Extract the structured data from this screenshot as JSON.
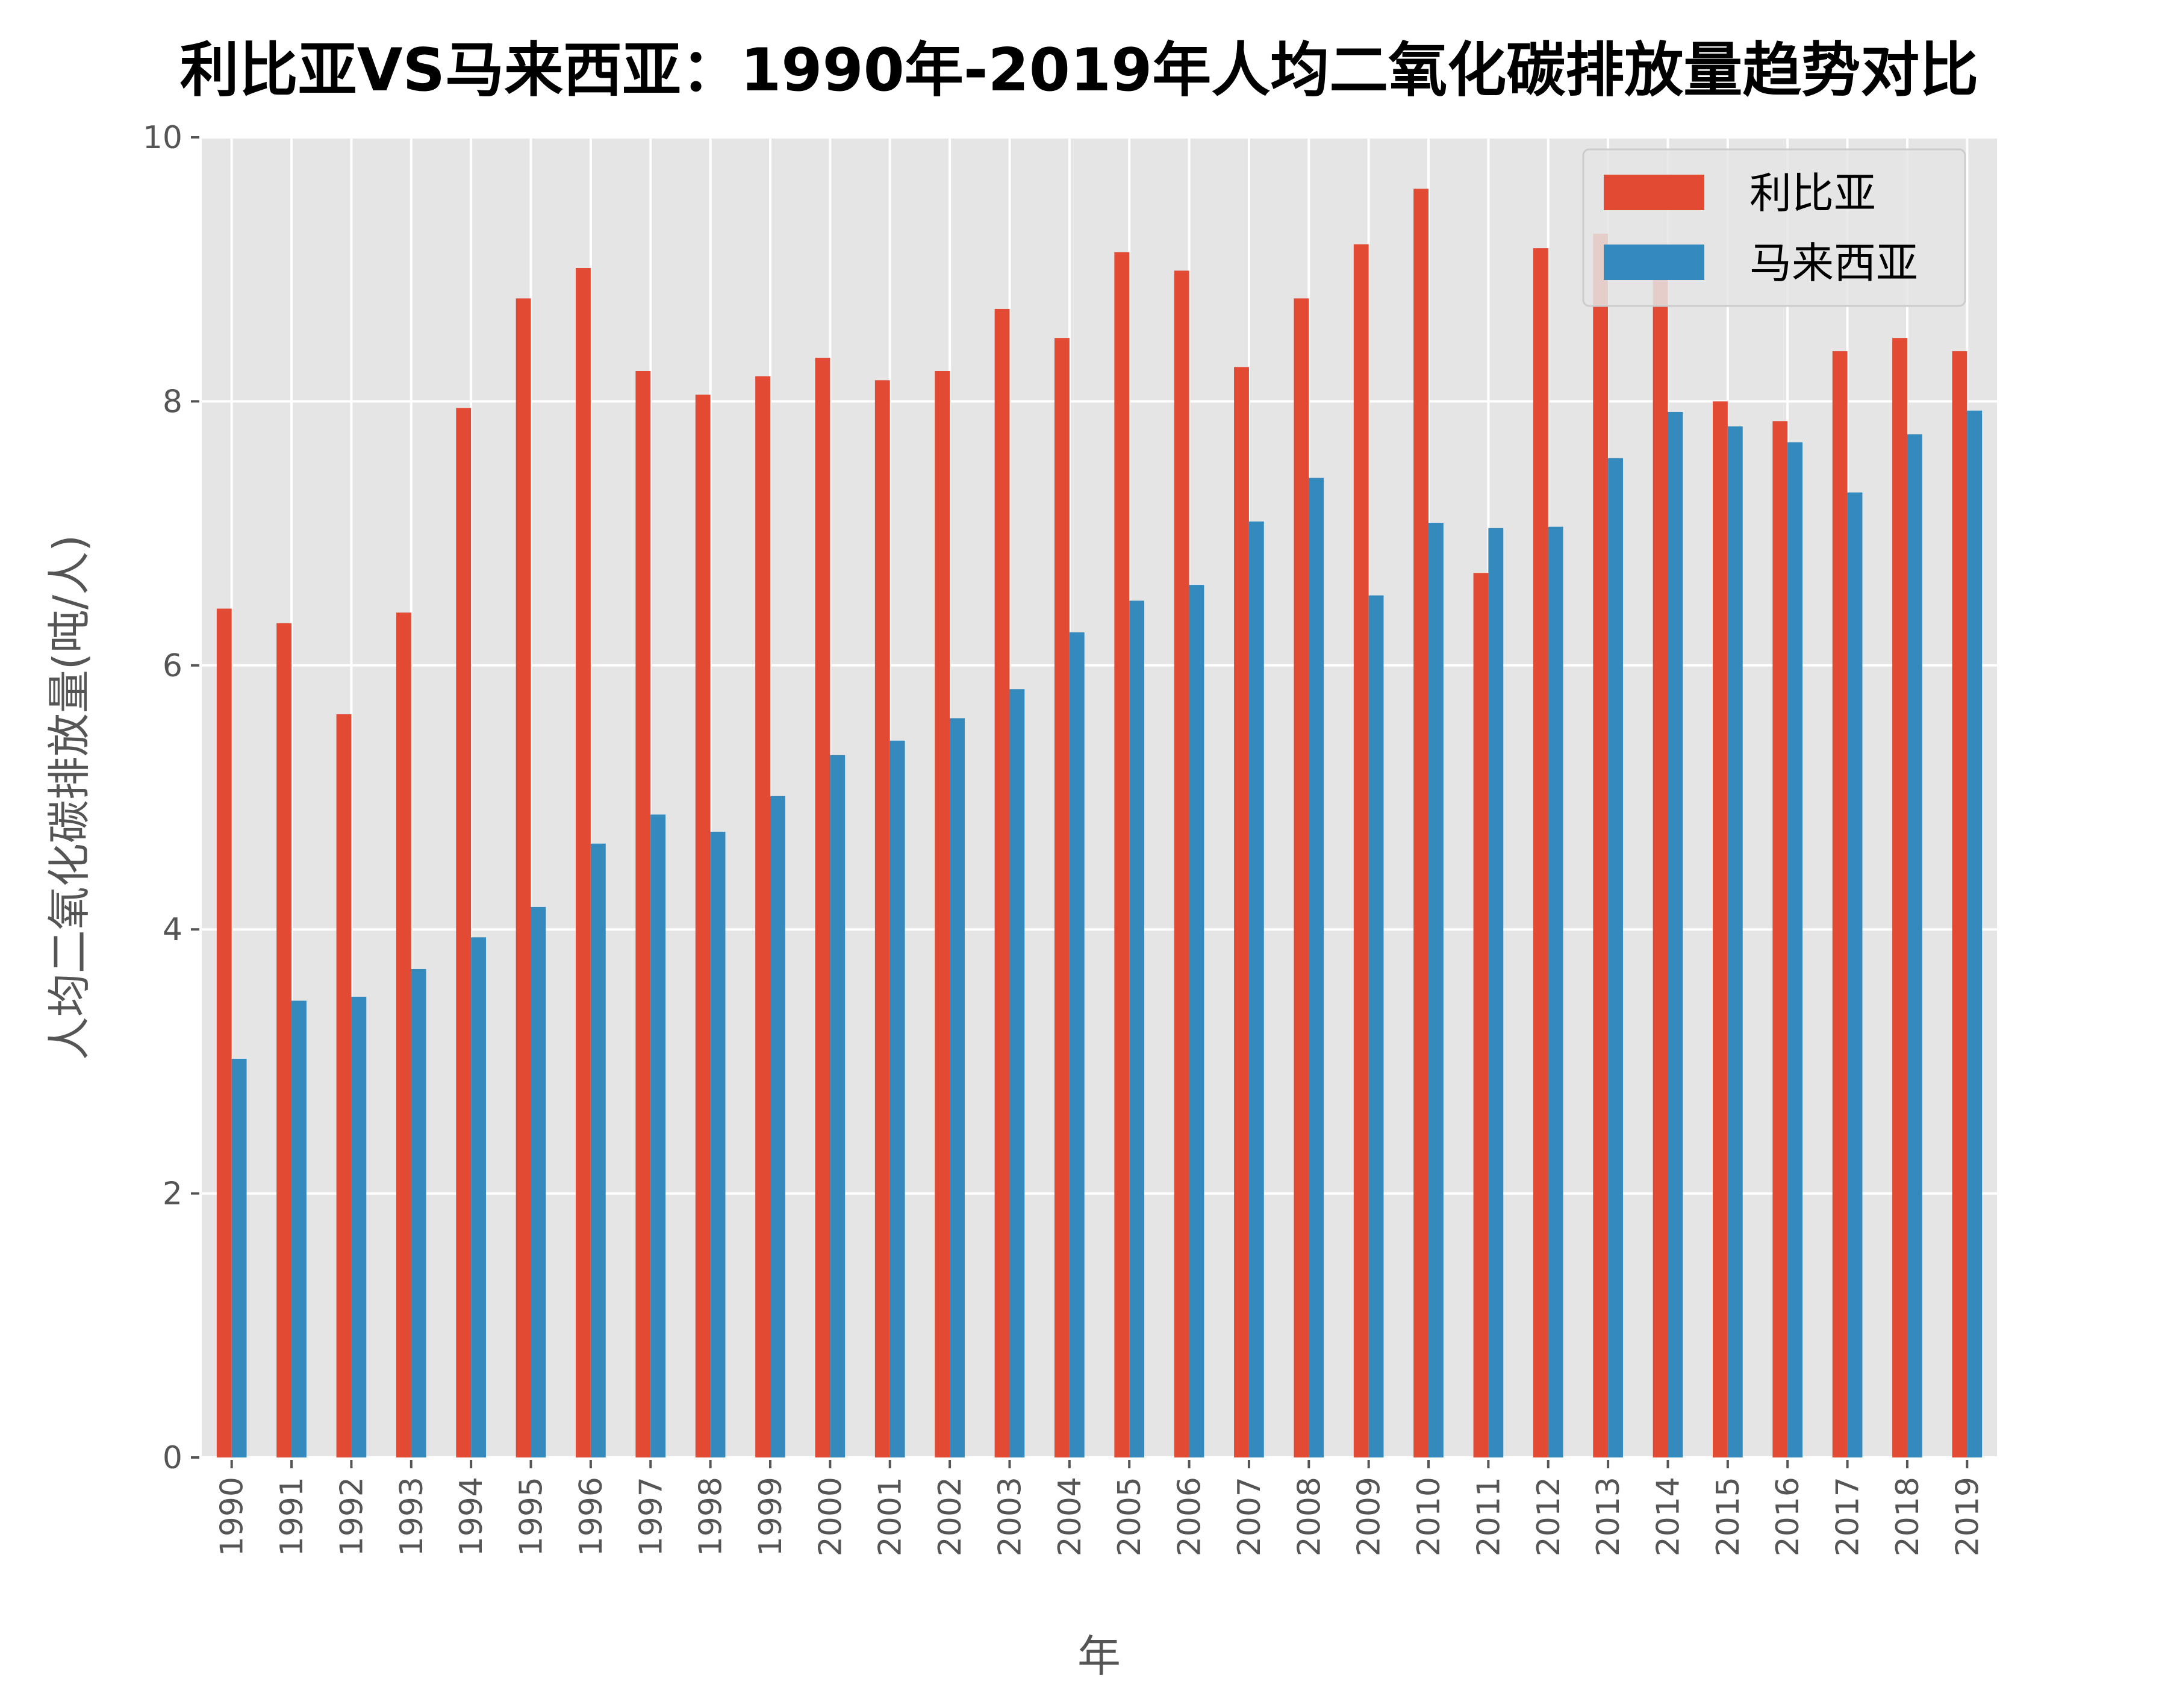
{
  "chart_data": {
    "type": "bar",
    "title": "利比亚VS马来西亚：1990年-2019年人均二氧化碳排放量趋势对比",
    "xlabel": "年",
    "ylabel": "人均二氧化碳排放量(吨/人)",
    "ylim": [
      0,
      10
    ],
    "yticks": [
      "0",
      "2",
      "4",
      "6",
      "8",
      "10"
    ],
    "grid": true,
    "legend_position": "top-right",
    "categories": [
      "1990",
      "1991",
      "1992",
      "1993",
      "1994",
      "1995",
      "1996",
      "1997",
      "1998",
      "1999",
      "2000",
      "2001",
      "2002",
      "2003",
      "2004",
      "2005",
      "2006",
      "2007",
      "2008",
      "2009",
      "2010",
      "2011",
      "2012",
      "2013",
      "2014",
      "2015",
      "2016",
      "2017",
      "2018",
      "2019"
    ],
    "series": [
      {
        "name": "利比亚",
        "color": "#E24A33",
        "values": [
          6.43,
          6.32,
          5.63,
          6.4,
          7.95,
          8.78,
          9.01,
          8.23,
          8.05,
          8.19,
          8.33,
          8.16,
          8.23,
          8.7,
          8.48,
          9.13,
          8.99,
          8.26,
          8.78,
          9.19,
          9.61,
          6.7,
          9.16,
          9.27,
          8.92,
          8.0,
          7.85,
          8.38,
          8.48,
          8.38
        ]
      },
      {
        "name": "马来西亚",
        "color": "#348ABD",
        "values": [
          3.02,
          3.46,
          3.49,
          3.7,
          3.94,
          4.17,
          4.65,
          4.87,
          4.74,
          5.01,
          5.32,
          5.43,
          5.6,
          5.82,
          6.25,
          6.49,
          6.61,
          7.09,
          7.42,
          6.53,
          7.08,
          7.04,
          7.05,
          7.57,
          7.92,
          7.81,
          7.69,
          7.31,
          7.75,
          7.93
        ]
      }
    ]
  }
}
